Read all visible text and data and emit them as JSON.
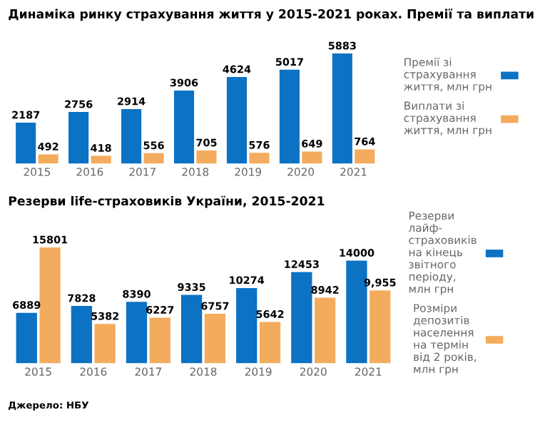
{
  "chart_data": [
    {
      "type": "bar",
      "title": "Динаміка ринку страхування життя у 2015-2021 роках. Премії та виплати",
      "categories": [
        "2015",
        "2016",
        "2017",
        "2018",
        "2019",
        "2020",
        "2021"
      ],
      "series": [
        {
          "name": "Премії зі\nстрахування\nжиття, млн грн",
          "color": "#0b72c4",
          "values": [
            2187,
            2756,
            2914,
            3906,
            4624,
            5017,
            5883
          ]
        },
        {
          "name": "Виплати зі\nстрахування\nжиття, млн грн",
          "color": "#f3ac5e",
          "values": [
            492,
            418,
            556,
            705,
            576,
            649,
            764
          ]
        }
      ],
      "data_labels": true,
      "legend": "right",
      "grid": false
    },
    {
      "type": "bar",
      "title": "Резерви life-страховиків України, 2015-2021",
      "categories": [
        "2015",
        "2016",
        "2017",
        "2018",
        "2019",
        "2020",
        "2021"
      ],
      "series": [
        {
          "name": "Резерви\nлайф-\nстраховиків\nна кінець\nзвітного\nперіоду,\nмлн грн",
          "color": "#0b72c4",
          "values": [
            6889,
            7828,
            8390,
            9335,
            10274,
            12453,
            14000
          ],
          "value_labels": [
            "6889",
            "7828",
            "8390",
            "9335",
            "10274",
            "12453",
            "14000"
          ]
        },
        {
          "name": "Розміри\nдепозитів\nнаселення\nна термін\nвід 2 років,\nмлн грн",
          "color": "#f3ac5e",
          "values": [
            15801,
            5382,
            6227,
            6757,
            5642,
            8942,
            9955
          ],
          "value_labels": [
            "15801",
            "5382",
            "6227",
            "6757",
            "5642",
            "8942",
            "9,955"
          ]
        }
      ],
      "legend": "right",
      "grid": false,
      "annotations": [
        "Джерело: НБУ"
      ]
    }
  ]
}
